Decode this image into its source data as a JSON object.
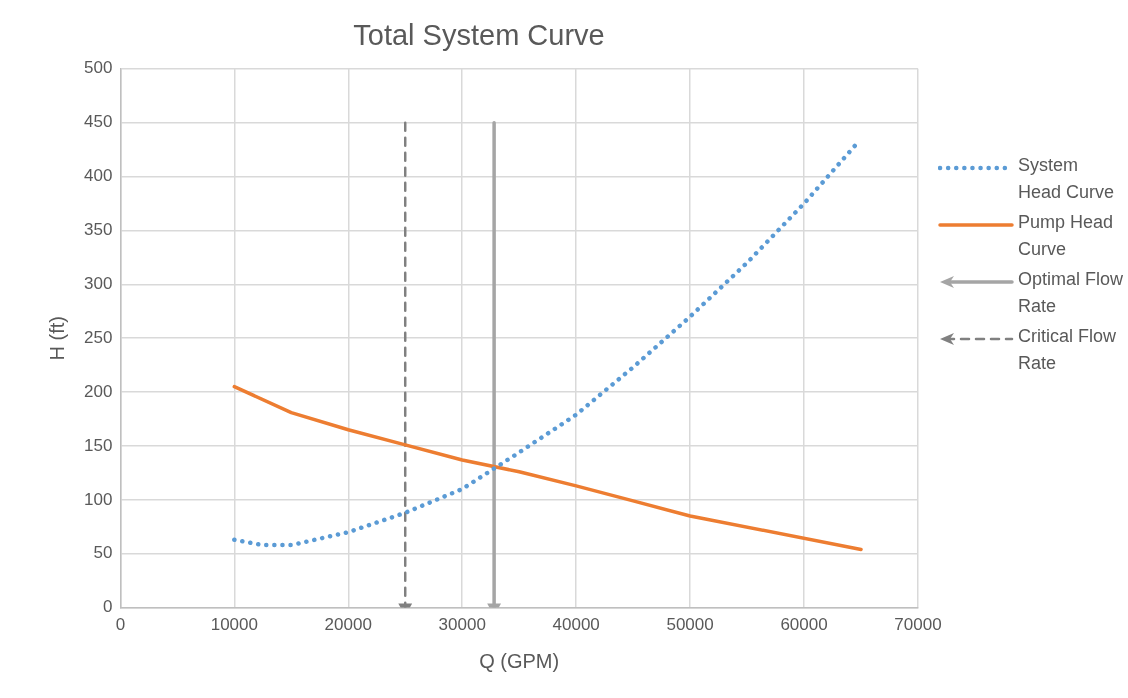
{
  "chart_data": {
    "type": "line",
    "title": "Total System Curve",
    "xlabel": "Q (GPM)",
    "ylabel": "H (ft)",
    "xlim": [
      0,
      70000
    ],
    "xticks": [
      0,
      10000,
      20000,
      30000,
      40000,
      50000,
      60000,
      70000
    ],
    "ylim": [
      0,
      500
    ],
    "yticks": [
      0,
      50,
      100,
      150,
      200,
      250,
      300,
      350,
      400,
      450,
      500
    ],
    "grid": true,
    "legend": "right",
    "marker": "none",
    "series": [
      {
        "name": "System Head Curve",
        "color": "#5b9bd5",
        "line_style": "dotted",
        "x": [
          10000,
          12500,
          15000,
          20000,
          25000,
          30000,
          35000,
          40000,
          45000,
          50000,
          55000,
          60000,
          64500
        ],
        "values": [
          63,
          58,
          58,
          70,
          88,
          110,
          144,
          179,
          223,
          270,
          320,
          375,
          429
        ]
      },
      {
        "name": "Pump Head Curve",
        "color": "#ed7d31",
        "line_style": "solid",
        "x": [
          10000,
          15000,
          20000,
          25000,
          30000,
          35000,
          40000,
          45000,
          50000,
          65000
        ],
        "values": [
          205,
          181,
          165,
          151,
          137,
          126,
          113,
          99,
          85,
          54
        ]
      },
      {
        "name": "Optimal Flow Rate",
        "color": "#a5a5a5",
        "line_style": "solid",
        "marker": "triangle",
        "x": [
          32800,
          32800
        ],
        "values": [
          450,
          0
        ]
      },
      {
        "name": "Critical Flow Rate",
        "color": "#808080",
        "line_style": "dashed",
        "marker": "triangle",
        "x": [
          25000,
          25000
        ],
        "values": [
          450,
          0
        ]
      }
    ]
  }
}
